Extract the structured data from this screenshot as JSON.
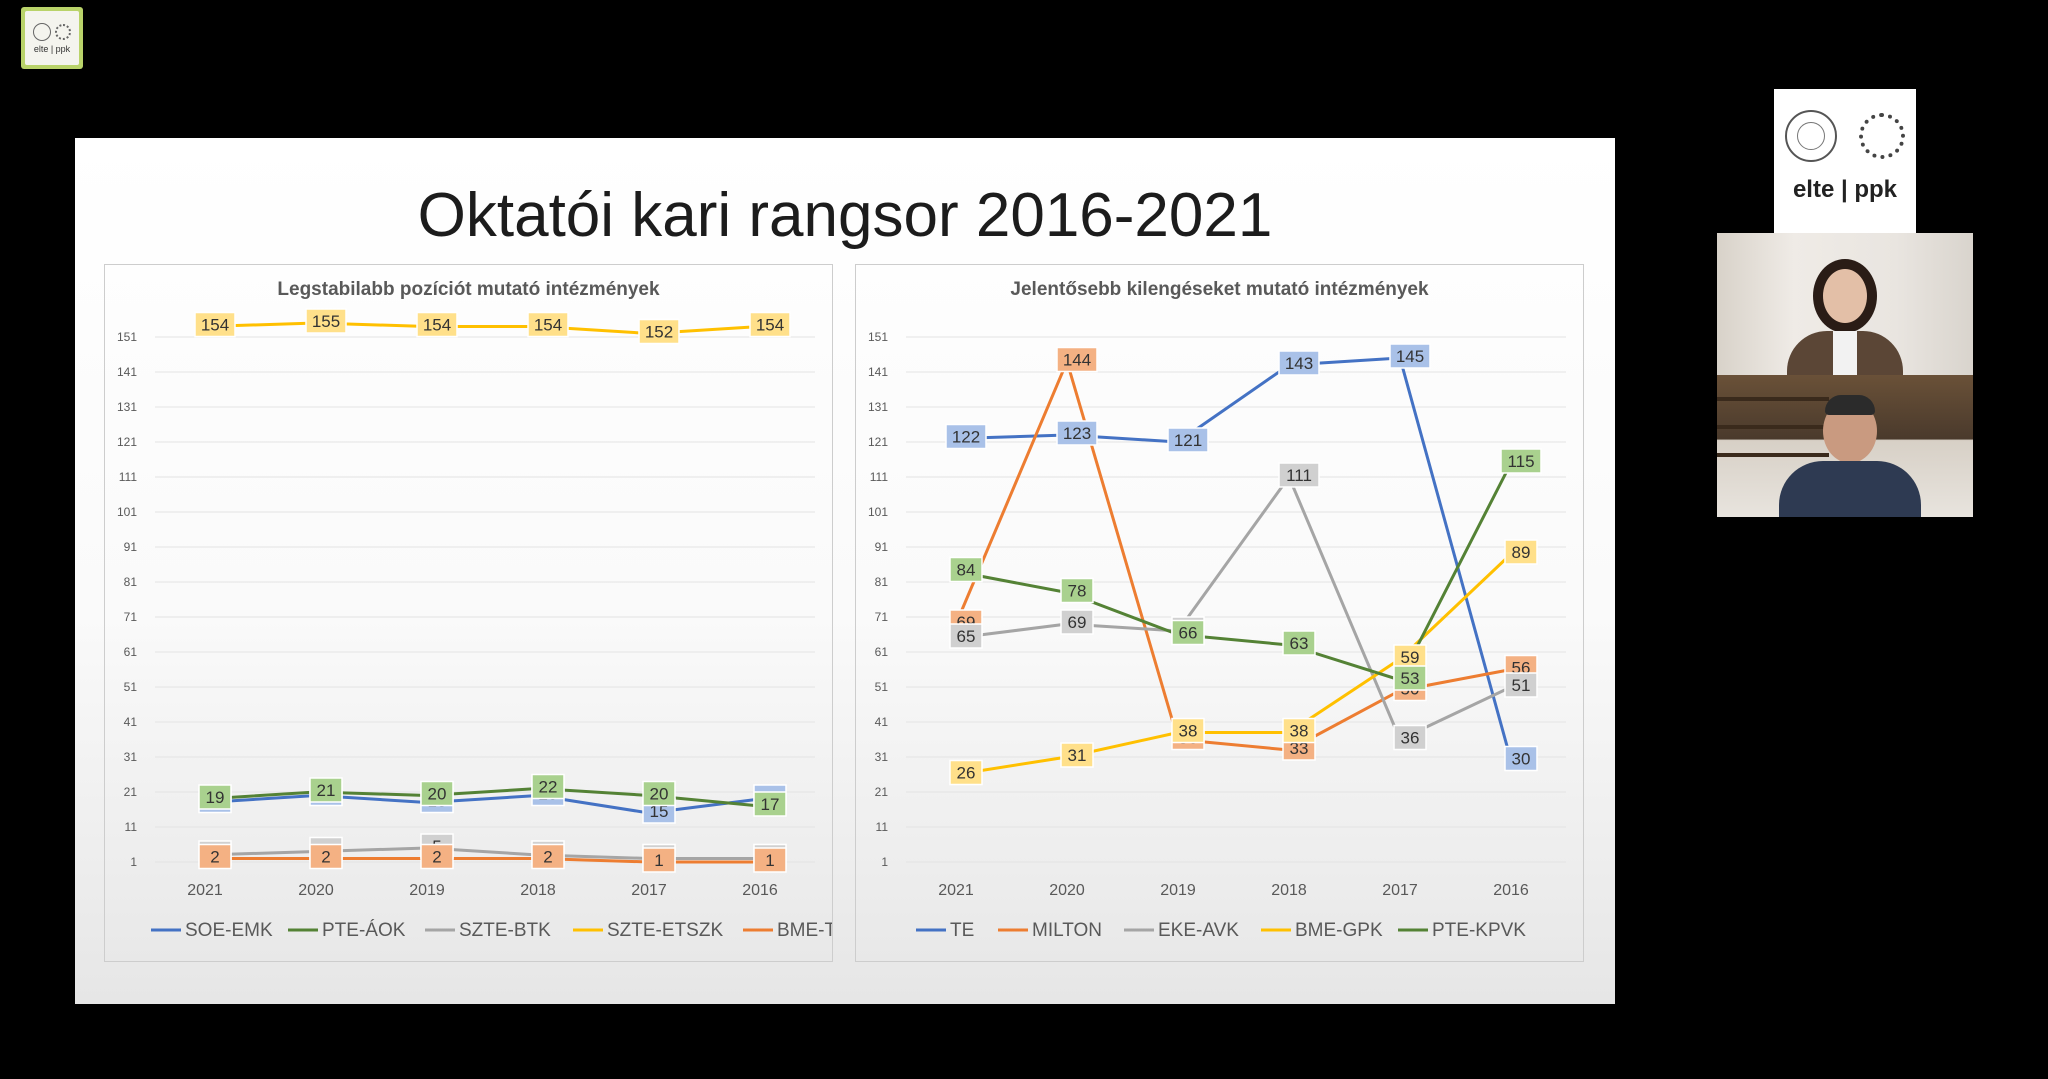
{
  "corner_logo": {
    "text": "elte | ppk"
  },
  "slide": {
    "title": "Oktatói kari rangsor 2016-2021",
    "charts": [
      {
        "id": "left",
        "title": "Legstabilabb pozíciót mutató intézmények"
      },
      {
        "id": "right",
        "title": "Jelentősebb kilengéseket mutató intézmények"
      }
    ]
  },
  "chart_data": [
    {
      "type": "line",
      "title": "Legstabilabb pozíciót mutató intézmények",
      "categories": [
        "2021",
        "2020",
        "2019",
        "2018",
        "2017",
        "2016"
      ],
      "y_ticks": [
        1,
        11,
        21,
        31,
        41,
        51,
        61,
        71,
        81,
        91,
        101,
        111,
        121,
        131,
        141,
        151
      ],
      "ylim": [
        1,
        151
      ],
      "series": [
        {
          "name": "SOE-EMK",
          "color": "#4472c4",
          "label_fill": "#a9c1e8",
          "values": [
            18,
            20,
            18,
            20,
            15,
            19
          ]
        },
        {
          "name": "PTE-ÁOK",
          "color": "#548235",
          "label_fill": "#a9d18e",
          "values": [
            19,
            21,
            20,
            22,
            20,
            17
          ]
        },
        {
          "name": "SZTE-BTK",
          "color": "#a5a5a5",
          "label_fill": "#d0d0d0",
          "values": [
            3,
            4,
            5,
            3,
            2,
            2
          ]
        },
        {
          "name": "SZTE-ETSZK",
          "color": "#ffc000",
          "label_fill": "#ffe08a",
          "values": [
            154,
            155,
            154,
            154,
            152,
            154
          ]
        },
        {
          "name": "BME-TTK",
          "color": "#ed7d31",
          "label_fill": "#f4b183",
          "values": [
            2,
            2,
            2,
            2,
            1,
            1
          ]
        }
      ]
    },
    {
      "type": "line",
      "title": "Jelentősebb kilengéseket mutató intézmények",
      "categories": [
        "2021",
        "2020",
        "2019",
        "2018",
        "2017",
        "2016"
      ],
      "y_ticks": [
        1,
        11,
        21,
        31,
        41,
        51,
        61,
        71,
        81,
        91,
        101,
        111,
        121,
        131,
        141,
        151
      ],
      "ylim": [
        1,
        151
      ],
      "series": [
        {
          "name": "TE",
          "color": "#4472c4",
          "label_fill": "#a9c1e8",
          "values": [
            122,
            123,
            121,
            143,
            145,
            30
          ]
        },
        {
          "name": "MILTON",
          "color": "#ed7d31",
          "label_fill": "#f4b183",
          "values": [
            69,
            144,
            36,
            33,
            50,
            56
          ]
        },
        {
          "name": "EKE-AVK",
          "color": "#a5a5a5",
          "label_fill": "#d0d0d0",
          "values": [
            65,
            69,
            67,
            111,
            36,
            51
          ]
        },
        {
          "name": "BME-GPK",
          "color": "#ffc000",
          "label_fill": "#ffe08a",
          "values": [
            26,
            31,
            38,
            38,
            59,
            89
          ]
        },
        {
          "name": "PTE-KPVK",
          "color": "#548235",
          "label_fill": "#a9d18e",
          "values": [
            84,
            78,
            66,
            63,
            53,
            115
          ]
        }
      ]
    }
  ],
  "video_panel": {
    "logo_text": "elte | ppk"
  }
}
